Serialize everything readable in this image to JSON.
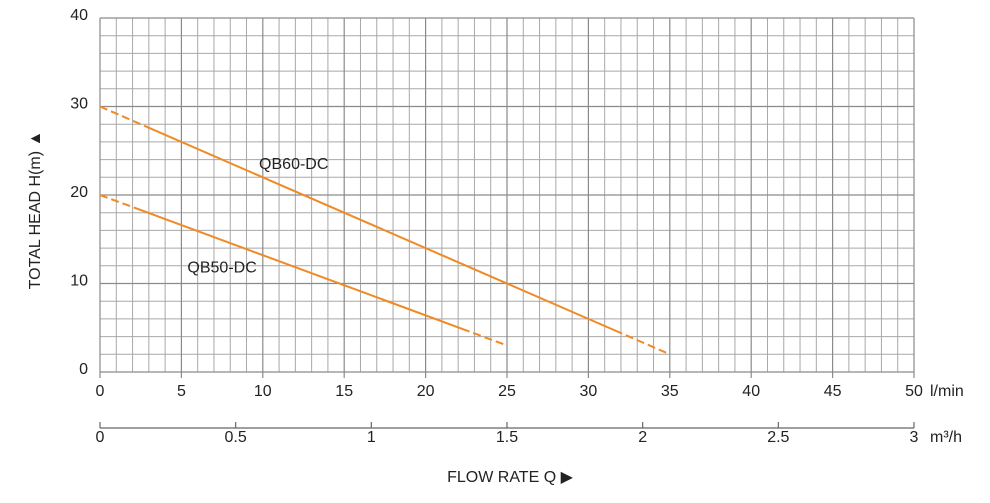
{
  "chart_data": {
    "type": "line",
    "ylabel": "TOTAL HEAD H(m) ▲",
    "xlabel": "FLOW RATE Q ▶",
    "xunit": "l/min",
    "x2unit": "m³/h",
    "xlim": [
      0,
      50
    ],
    "xticks": [
      0,
      5,
      10,
      15,
      20,
      25,
      30,
      35,
      40,
      45,
      50
    ],
    "x2lim": [
      0,
      3
    ],
    "x2ticks": [
      0,
      0.5,
      1,
      1.5,
      2,
      2.5,
      3
    ],
    "ylim": [
      0,
      40
    ],
    "yticks": [
      0,
      10,
      20,
      30,
      40
    ],
    "grid": true,
    "series": [
      {
        "name": "QB60-DC",
        "color": "#f08a24",
        "x": [
          0,
          35
        ],
        "values": [
          30,
          2
        ]
      },
      {
        "name": "QB50-DC",
        "color": "#f08a24",
        "x": [
          0,
          25
        ],
        "values": [
          20,
          3
        ]
      }
    ]
  }
}
